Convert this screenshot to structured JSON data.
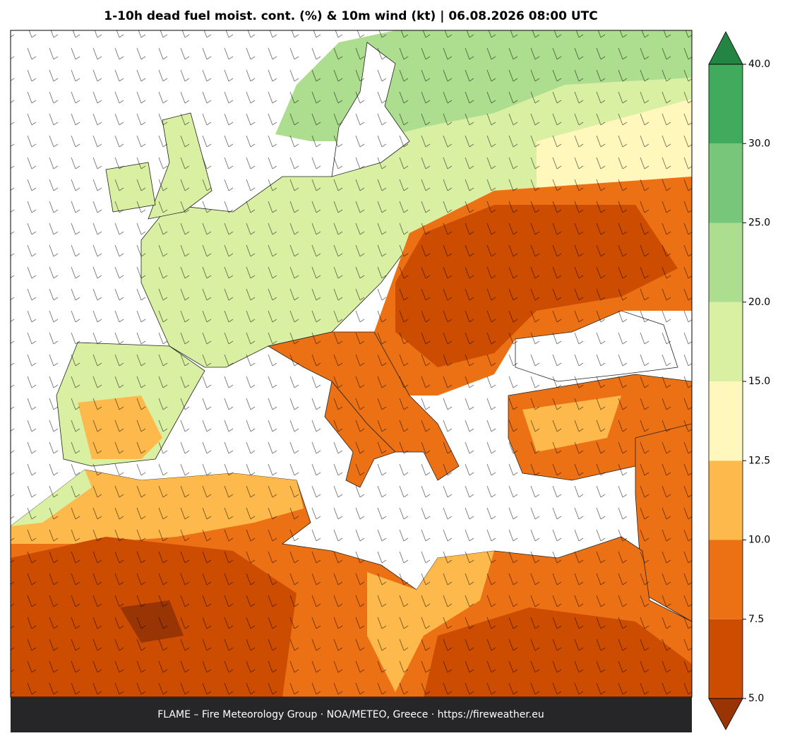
{
  "title": "1-10h dead fuel moist. cont. (%) & 10m wind (kt)  |  06.08.2026 08:00 UTC",
  "footer": "FLAME – Fire Meteorology Group · NOA/METEO, Greece · https://fireweather.eu",
  "colorbar": {
    "ticks": [
      {
        "value": 5,
        "label": "5.0"
      },
      {
        "value": 7.5,
        "label": "7.5"
      },
      {
        "value": 10,
        "label": "10.0"
      },
      {
        "value": 12.5,
        "label": "12.5"
      },
      {
        "value": 15,
        "label": "15.0"
      },
      {
        "value": 20,
        "label": "20.0"
      },
      {
        "value": 25,
        "label": "25.0"
      },
      {
        "value": 30,
        "label": "30.0"
      },
      {
        "value": 40,
        "label": "40.0"
      }
    ],
    "colors": [
      "#cc4c02",
      "#ec7014",
      "#fdb94b",
      "#fff7bc",
      "#d9f0a3",
      "#addd8e",
      "#78c679",
      "#41ab5d"
    ],
    "under_color": "#993404",
    "over_color": "#238443"
  }
}
